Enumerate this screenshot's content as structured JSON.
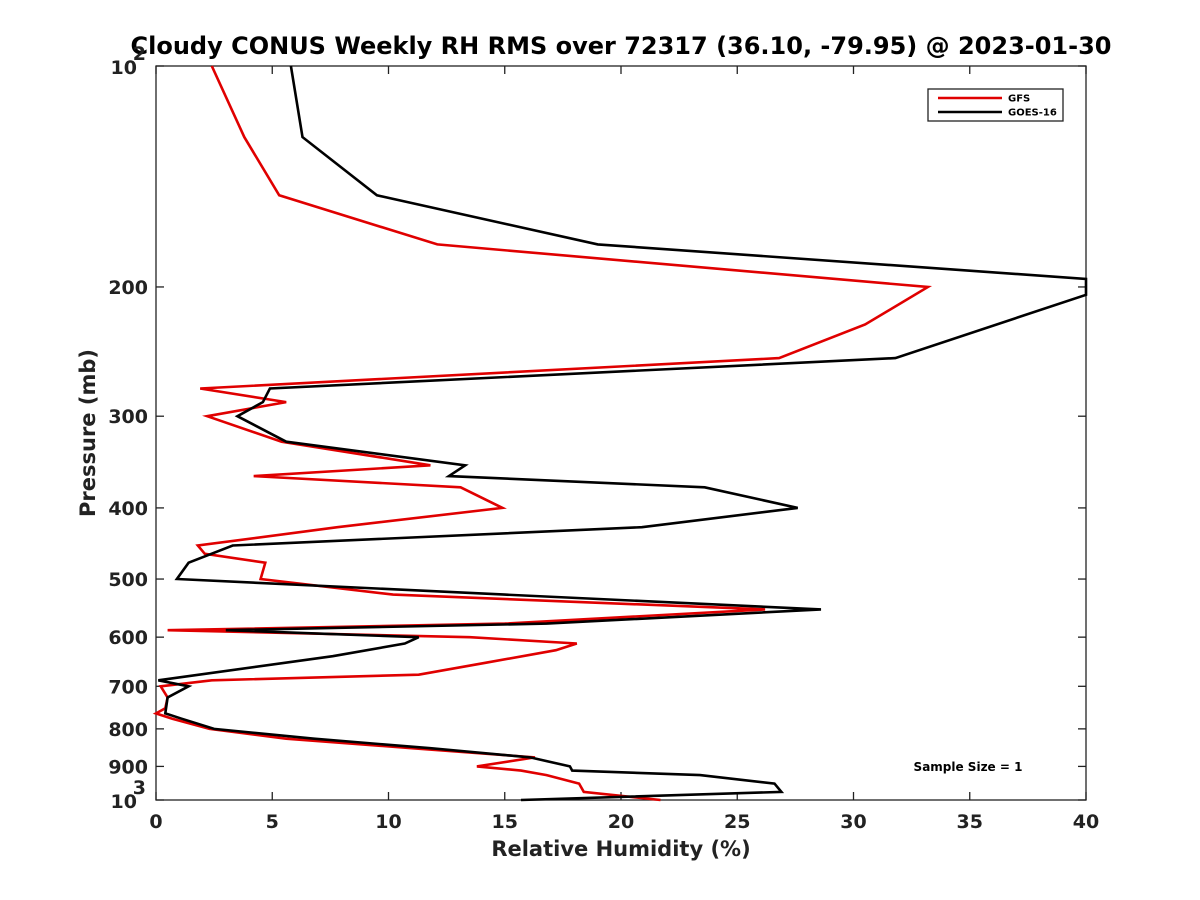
{
  "chart_data": {
    "type": "line",
    "title": "Cloudy CONUS Weekly RH RMS over 72317 (36.10, -79.95) @ 2023-01-30",
    "xlabel": "Relative Humidity (%)",
    "ylabel": "Pressure (mb)",
    "xlim": [
      0,
      40
    ],
    "ylim": [
      100,
      1000
    ],
    "y_scale": "log",
    "y_reversed": true,
    "x_ticks": [
      "0",
      "5",
      "10",
      "15",
      "20",
      "25",
      "30",
      "35",
      "40"
    ],
    "y_ticks": [
      {
        "value": 100,
        "base": "10",
        "exp": "2"
      },
      {
        "value": 200,
        "label": "200"
      },
      {
        "value": 300,
        "label": "300"
      },
      {
        "value": 400,
        "label": "400"
      },
      {
        "value": 500,
        "label": "500"
      },
      {
        "value": 600,
        "label": "600"
      },
      {
        "value": 700,
        "label": "700"
      },
      {
        "value": 800,
        "label": "800"
      },
      {
        "value": 900,
        "label": "900"
      },
      {
        "value": 1000,
        "base": "10",
        "exp": "3"
      }
    ],
    "grid": false,
    "legend_position": "top-right",
    "annotation": "Sample Size = 1",
    "series": [
      {
        "name": "GFS",
        "color": "#e00000",
        "points": [
          [
            2.4,
            100
          ],
          [
            3.8,
            125
          ],
          [
            5.3,
            150
          ],
          [
            12.1,
            175
          ],
          [
            33.2,
            200
          ],
          [
            30.5,
            225
          ],
          [
            26.8,
            250
          ],
          [
            1.9,
            275
          ],
          [
            5.6,
            287
          ],
          [
            2.2,
            300
          ],
          [
            5.4,
            325
          ],
          [
            11.8,
            350
          ],
          [
            4.2,
            362
          ],
          [
            13.1,
            375
          ],
          [
            14.9,
            400
          ],
          [
            7.8,
            425
          ],
          [
            1.8,
            450
          ],
          [
            2.1,
            462
          ],
          [
            4.7,
            475
          ],
          [
            4.5,
            500
          ],
          [
            10.2,
            525
          ],
          [
            26.2,
            550
          ],
          [
            15.0,
            575
          ],
          [
            0.5,
            587
          ],
          [
            13.5,
            600
          ],
          [
            18.1,
            612
          ],
          [
            17.2,
            625
          ],
          [
            14.2,
            650
          ],
          [
            11.3,
            675
          ],
          [
            2.4,
            687
          ],
          [
            0.2,
            700
          ],
          [
            0.5,
            725
          ],
          [
            0.4,
            750
          ],
          [
            0.0,
            762
          ],
          [
            0.7,
            775
          ],
          [
            2.3,
            800
          ],
          [
            5.6,
            825
          ],
          [
            11.0,
            850
          ],
          [
            16.3,
            875
          ],
          [
            13.8,
            900
          ],
          [
            15.7,
            912
          ],
          [
            16.8,
            925
          ],
          [
            18.2,
            950
          ],
          [
            18.4,
            975
          ],
          [
            21.7,
            1000
          ]
        ]
      },
      {
        "name": "GOES-16",
        "color": "#000000",
        "points": [
          [
            5.8,
            100
          ],
          [
            6.3,
            125
          ],
          [
            9.5,
            150
          ],
          [
            19.0,
            175
          ],
          [
            40.0,
            195
          ],
          [
            40.0,
            205
          ],
          [
            31.8,
            250
          ],
          [
            4.9,
            275
          ],
          [
            4.6,
            287
          ],
          [
            3.5,
            300
          ],
          [
            5.6,
            325
          ],
          [
            13.3,
            350
          ],
          [
            12.6,
            362
          ],
          [
            23.6,
            375
          ],
          [
            27.6,
            400
          ],
          [
            20.9,
            425
          ],
          [
            3.3,
            450
          ],
          [
            1.4,
            475
          ],
          [
            0.9,
            500
          ],
          [
            15.0,
            525
          ],
          [
            28.6,
            550
          ],
          [
            16.8,
            575
          ],
          [
            3.0,
            587
          ],
          [
            11.3,
            600
          ],
          [
            10.7,
            612
          ],
          [
            7.6,
            637
          ],
          [
            0.1,
            687
          ],
          [
            1.4,
            700
          ],
          [
            0.5,
            725
          ],
          [
            0.4,
            762
          ],
          [
            1.1,
            775
          ],
          [
            2.5,
            800
          ],
          [
            6.8,
            825
          ],
          [
            11.8,
            850
          ],
          [
            16.1,
            875
          ],
          [
            17.8,
            900
          ],
          [
            17.9,
            912
          ],
          [
            23.4,
            925
          ],
          [
            26.6,
            950
          ],
          [
            26.9,
            975
          ],
          [
            15.7,
            1000
          ]
        ]
      }
    ]
  }
}
